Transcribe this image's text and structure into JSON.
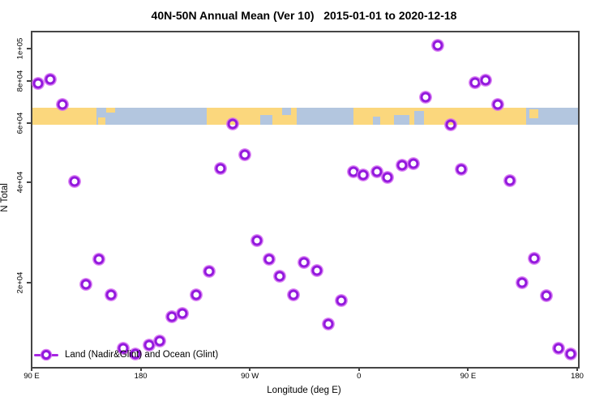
{
  "title": "40N-50N Annual Mean (Ver 10)   2015-01-01 to 2020-12-18",
  "chart_data": {
    "type": "scatter",
    "title": "40N-50N Annual Mean (Ver 10)   2015-01-01 to 2020-12-18",
    "xlabel": "Longitude (deg E)",
    "ylabel": "N Total",
    "y_scale": "log",
    "x_range_deg_east_continuous": [
      90,
      540
    ],
    "x_ticks": [
      {
        "pos": 90,
        "label": "90 E"
      },
      {
        "pos": 180,
        "label": "180"
      },
      {
        "pos": 270,
        "label": "90 W"
      },
      {
        "pos": 360,
        "label": "0"
      },
      {
        "pos": 450,
        "label": "90 E"
      },
      {
        "pos": 540,
        "label": "180"
      }
    ],
    "y_ticks": [
      {
        "value": 20000,
        "label": "2e+04"
      },
      {
        "value": 40000,
        "label": "4e+04"
      },
      {
        "value": 60000,
        "label": "6e+04"
      },
      {
        "value": 80000,
        "label": "8e+04"
      },
      {
        "value": 100000,
        "label": "1e+05"
      }
    ],
    "legend": {
      "label": "Land (Nadir&Glint) and Ocean (Glint)",
      "position": "bottom-left"
    },
    "colors": {
      "marker_ring": "#9318dd",
      "marker_glow": "#d66ff2",
      "legend_line": "#a726e3",
      "land": "#fbd77d",
      "ocean": "#b3c6df",
      "axis": "#454545"
    },
    "map_band": {
      "description": "40N-50N land/ocean strip drawn across the plot",
      "value_top": 67000,
      "value_bottom": 59500,
      "segments": [
        {
          "from": 90,
          "to": 143,
          "type": "land"
        },
        {
          "from": 143,
          "to": 234,
          "type": "ocean"
        },
        {
          "from": 234,
          "to": 308,
          "type": "land"
        },
        {
          "from": 308,
          "to": 355,
          "type": "ocean"
        },
        {
          "from": 355,
          "to": 497,
          "type": "land"
        },
        {
          "from": 497,
          "to": 540,
          "type": "ocean"
        }
      ],
      "patches": [
        {
          "from": 144,
          "to": 150,
          "type": "land",
          "top": 0.55,
          "height": 0.45
        },
        {
          "from": 151,
          "to": 158,
          "type": "land",
          "top": 0.0,
          "height": 0.3
        },
        {
          "from": 278,
          "to": 288,
          "type": "ocean",
          "top": 0.45,
          "height": 0.55
        },
        {
          "from": 296,
          "to": 303,
          "type": "ocean",
          "top": 0.0,
          "height": 0.45
        },
        {
          "from": 371,
          "to": 377,
          "type": "ocean",
          "top": 0.5,
          "height": 0.5
        },
        {
          "from": 388,
          "to": 401,
          "type": "ocean",
          "top": 0.45,
          "height": 0.55
        },
        {
          "from": 405,
          "to": 413,
          "type": "ocean",
          "top": 0.2,
          "height": 0.8
        },
        {
          "from": 500,
          "to": 507,
          "type": "land",
          "top": 0.1,
          "height": 0.5
        }
      ]
    },
    "series": [
      {
        "name": "Land (Nadir&Glint) and Ocean (Glint)",
        "marker": "open-circle",
        "points": [
          {
            "lon": 95,
            "value": 79300
          },
          {
            "lon": 105,
            "value": 81400
          },
          {
            "lon": 115,
            "value": 68600
          },
          {
            "lon": 125,
            "value": 40400
          },
          {
            "lon": 134,
            "value": 19900
          },
          {
            "lon": 145,
            "value": 23700
          },
          {
            "lon": 155,
            "value": 18500
          },
          {
            "lon": 165,
            "value": 12800
          },
          {
            "lon": 175,
            "value": 12300
          },
          {
            "lon": 186,
            "value": 13100
          },
          {
            "lon": 195,
            "value": 13500
          },
          {
            "lon": 205,
            "value": 15900
          },
          {
            "lon": 214,
            "value": 16300
          },
          {
            "lon": 225,
            "value": 18500
          },
          {
            "lon": 236,
            "value": 21700
          },
          {
            "lon": 245,
            "value": 44100
          },
          {
            "lon": 255,
            "value": 59900
          },
          {
            "lon": 265,
            "value": 48600
          },
          {
            "lon": 275,
            "value": 26900
          },
          {
            "lon": 285,
            "value": 23700
          },
          {
            "lon": 294,
            "value": 21000
          },
          {
            "lon": 305,
            "value": 18500
          },
          {
            "lon": 314,
            "value": 23100
          },
          {
            "lon": 325,
            "value": 21900
          },
          {
            "lon": 334,
            "value": 15100
          },
          {
            "lon": 345,
            "value": 17800
          },
          {
            "lon": 355,
            "value": 43100
          },
          {
            "lon": 363,
            "value": 42100
          },
          {
            "lon": 374,
            "value": 43100
          },
          {
            "lon": 383,
            "value": 41400
          },
          {
            "lon": 395,
            "value": 45200
          },
          {
            "lon": 404,
            "value": 45600
          },
          {
            "lon": 414,
            "value": 71900
          },
          {
            "lon": 424,
            "value": 103000
          },
          {
            "lon": 435,
            "value": 59500
          },
          {
            "lon": 444,
            "value": 43800
          },
          {
            "lon": 455,
            "value": 79500
          },
          {
            "lon": 464,
            "value": 81100
          },
          {
            "lon": 474,
            "value": 68400
          },
          {
            "lon": 484,
            "value": 40600
          },
          {
            "lon": 494,
            "value": 20100
          },
          {
            "lon": 504,
            "value": 23800
          },
          {
            "lon": 514,
            "value": 18400
          },
          {
            "lon": 524,
            "value": 12800
          },
          {
            "lon": 534,
            "value": 12300
          }
        ]
      }
    ]
  }
}
